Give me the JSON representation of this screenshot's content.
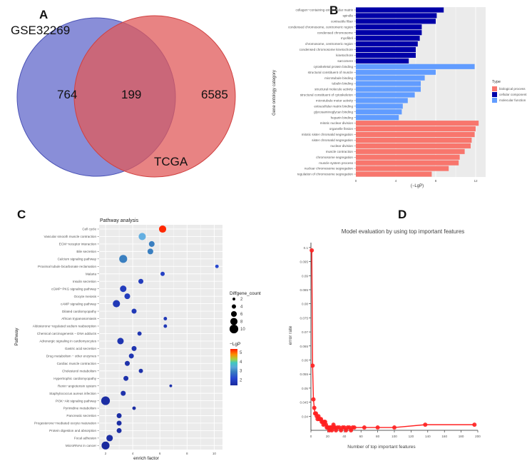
{
  "panels": {
    "a": "A",
    "b": "B",
    "c": "C",
    "d": "D"
  },
  "chart_data": [
    {
      "type": "venn",
      "sets": [
        {
          "name": "GSE32269",
          "only": "764",
          "color": "#5b63c9"
        },
        {
          "name": "TCGA",
          "only": "6585",
          "color": "#e05a5a"
        }
      ],
      "intersection": "199"
    },
    {
      "type": "bar",
      "orientation": "horizontal",
      "title": "",
      "xlabel": "(−LgP)",
      "ylabel": "Gene ontology category",
      "xlim": [
        0,
        13
      ],
      "xticks": [
        "0",
        "4",
        "8",
        "12"
      ],
      "legend": {
        "title": "Type",
        "placement": "right",
        "entries": [
          {
            "label": "biological process",
            "color": "#f8766d"
          },
          {
            "label": "cellular component",
            "color": "#0000a8"
          },
          {
            "label": "molecular function",
            "color": "#619cff"
          }
        ]
      },
      "bars": [
        {
          "label": "collagen−containing extracellular matrix",
          "type": 1,
          "value": 8.8
        },
        {
          "label": "spindle",
          "type": 1,
          "value": 8.1
        },
        {
          "label": "contractile fiber",
          "type": 1,
          "value": 8.0
        },
        {
          "label": "condensed chromosome, centromeric region",
          "type": 1,
          "value": 6.6
        },
        {
          "label": "condensed chromosome",
          "type": 1,
          "value": 6.6
        },
        {
          "label": "myofibril",
          "type": 1,
          "value": 6.4
        },
        {
          "label": "chromosome, centromeric region",
          "type": 1,
          "value": 6.2
        },
        {
          "label": "condensed chromosome kinetochore",
          "type": 1,
          "value": 6.0
        },
        {
          "label": "kinetochore",
          "type": 1,
          "value": 6.0
        },
        {
          "label": "sarcomere",
          "type": 1,
          "value": 5.3
        },
        {
          "label": "cytoskeletal protein binding",
          "type": 2,
          "value": 11.9
        },
        {
          "label": "structural constituent of muscle",
          "type": 2,
          "value": 8.0
        },
        {
          "label": "microtubule binding",
          "type": 2,
          "value": 6.9
        },
        {
          "label": "tubulin binding",
          "type": 2,
          "value": 6.5
        },
        {
          "label": "structural molecule activity",
          "type": 2,
          "value": 6.5
        },
        {
          "label": "structural constituent of cytoskeleton",
          "type": 2,
          "value": 5.9
        },
        {
          "label": "microtubule motor activity",
          "type": 2,
          "value": 5.2
        },
        {
          "label": "extracellular matrix binding",
          "type": 2,
          "value": 4.7
        },
        {
          "label": "glycosaminoglycan binding",
          "type": 2,
          "value": 4.6
        },
        {
          "label": "heparin binding",
          "type": 2,
          "value": 4.3
        },
        {
          "label": "mitotic nuclear division",
          "type": 0,
          "value": 12.3
        },
        {
          "label": "organelle fission",
          "type": 0,
          "value": 12.0
        },
        {
          "label": "mitotic sister chromatid segregation",
          "type": 0,
          "value": 11.9
        },
        {
          "label": "sister chromatid segregation",
          "type": 0,
          "value": 11.6
        },
        {
          "label": "nuclear division",
          "type": 0,
          "value": 11.5
        },
        {
          "label": "muscle contraction",
          "type": 0,
          "value": 10.9
        },
        {
          "label": "chromosome segregation",
          "type": 0,
          "value": 10.4
        },
        {
          "label": "muscle system process",
          "type": 0,
          "value": 10.3
        },
        {
          "label": "nuclear chromosome segregation",
          "type": 0,
          "value": 9.3
        },
        {
          "label": "regulation of chromosome segregation",
          "type": 0,
          "value": 7.6
        }
      ]
    },
    {
      "type": "scatter",
      "title": "Pathway analysis",
      "xlabel": "enrich factor",
      "ylabel": "Pathway",
      "xlim": [
        1.5,
        10.6
      ],
      "xticks": [
        "2",
        "4",
        "6",
        "8",
        "10"
      ],
      "size_legend": {
        "title": "Diffgene_count",
        "values": [
          "2",
          "4",
          "6",
          "8",
          "10"
        ]
      },
      "color_legend": {
        "title": "−LgP",
        "ticks": [
          "5",
          "4",
          "3",
          "2"
        ],
        "range": [
          1.4,
          5.4
        ]
      },
      "points": [
        {
          "pathway": "Cell cycle",
          "x": 6.2,
          "count": 8,
          "lgp": 5.3
        },
        {
          "pathway": "Vascular smooth muscle contraction",
          "x": 4.7,
          "count": 8,
          "lgp": 3.4
        },
        {
          "pathway": "ECM−receptor interaction",
          "x": 5.4,
          "count": 6,
          "lgp": 2.9
        },
        {
          "pathway": "Bile secretion",
          "x": 5.3,
          "count": 6,
          "lgp": 2.9
        },
        {
          "pathway": "Calcium signaling pathway",
          "x": 3.3,
          "count": 9,
          "lgp": 2.9
        },
        {
          "pathway": "Proximal tubule bicarbonate reclamation",
          "x": 10.2,
          "count": 3,
          "lgp": 2.2
        },
        {
          "pathway": "Malaria",
          "x": 6.2,
          "count": 4,
          "lgp": 2.0
        },
        {
          "pathway": "Insulin secretion",
          "x": 4.6,
          "count": 5,
          "lgp": 1.9
        },
        {
          "pathway": "cGMP−PKG signaling pathway",
          "x": 3.3,
          "count": 7,
          "lgp": 1.9
        },
        {
          "pathway": "Oocyte meiosis",
          "x": 3.6,
          "count": 6,
          "lgp": 1.9
        },
        {
          "pathway": "cAMP signaling pathway",
          "x": 2.8,
          "count": 8,
          "lgp": 1.8
        },
        {
          "pathway": "Dilated cardiomyopathy",
          "x": 4.1,
          "count": 5,
          "lgp": 1.8
        },
        {
          "pathway": "African trypanosomiasis",
          "x": 6.4,
          "count": 3,
          "lgp": 1.8
        },
        {
          "pathway": "Aldosterone−regulated sodium reabsorption",
          "x": 6.4,
          "count": 3,
          "lgp": 1.8
        },
        {
          "pathway": "Chemical carcinogenesis − DNA adducts",
          "x": 4.5,
          "count": 4,
          "lgp": 1.7
        },
        {
          "pathway": "Adrenergic signaling in cardiomyocytes",
          "x": 3.1,
          "count": 7,
          "lgp": 1.7
        },
        {
          "pathway": "Gastric acid secretion",
          "x": 4.1,
          "count": 5,
          "lgp": 1.7
        },
        {
          "pathway": "Drug metabolism − other enzymes",
          "x": 3.9,
          "count": 5,
          "lgp": 1.7
        },
        {
          "pathway": "Cardiac muscle contraction",
          "x": 3.6,
          "count": 5,
          "lgp": 1.6
        },
        {
          "pathway": "Cholesterol metabolism",
          "x": 4.6,
          "count": 4,
          "lgp": 1.6
        },
        {
          "pathway": "Hypertrophic cardiomyopathy",
          "x": 3.5,
          "count": 5,
          "lgp": 1.6
        },
        {
          "pathway": "Renin−angiotensin system",
          "x": 6.8,
          "count": 2,
          "lgp": 1.6
        },
        {
          "pathway": "Staphylococcus aureus infection",
          "x": 3.3,
          "count": 5,
          "lgp": 1.6
        },
        {
          "pathway": "PI3K−Akt signaling pathway",
          "x": 2.0,
          "count": 10,
          "lgp": 1.5
        },
        {
          "pathway": "Pyrimidine metabolism",
          "x": 4.1,
          "count": 3,
          "lgp": 1.5
        },
        {
          "pathway": "Pancreatic secretion",
          "x": 3.0,
          "count": 5,
          "lgp": 1.5
        },
        {
          "pathway": "Progesterone−mediated oocyte maturation",
          "x": 3.0,
          "count": 5,
          "lgp": 1.5
        },
        {
          "pathway": "Protein digestion and absorption",
          "x": 3.0,
          "count": 5,
          "lgp": 1.5
        },
        {
          "pathway": "Focal adhesion",
          "x": 2.3,
          "count": 7,
          "lgp": 1.5
        },
        {
          "pathway": "MicroRNAs in cancer",
          "x": 2.0,
          "count": 9,
          "lgp": 1.4
        }
      ]
    },
    {
      "type": "line",
      "title": "Model evaluation by using top important features",
      "xlabel": "Number of top important features",
      "ylabel": "error rate",
      "xlim": [
        0,
        200
      ],
      "ylim": [
        0.035,
        0.1
      ],
      "xticks": [
        "0",
        "20",
        "40",
        "60",
        "80",
        "100",
        "120",
        "140",
        "160",
        "180",
        "200"
      ],
      "yticks": [
        "0.04",
        "0.045",
        "0.05",
        "0.055",
        "0.06",
        "0.065",
        "0.07",
        "0.075",
        "0.08",
        "0.085",
        "0.09",
        "0.095",
        "0.1"
      ],
      "color": "#ff2020",
      "x": [
        1,
        2,
        3,
        4,
        5,
        6,
        7,
        8,
        9,
        10,
        11,
        12,
        13,
        14,
        15,
        16,
        17,
        18,
        19,
        20,
        21,
        22,
        23,
        24,
        25,
        26,
        27,
        28,
        29,
        30,
        32,
        34,
        36,
        38,
        40,
        42,
        44,
        46,
        48,
        50,
        52,
        64,
        80,
        100,
        137,
        196
      ],
      "y": [
        0.099,
        0.058,
        0.046,
        0.043,
        0.041,
        0.041,
        0.04,
        0.039,
        0.04,
        0.039,
        0.039,
        0.039,
        0.038,
        0.038,
        0.037,
        0.038,
        0.038,
        0.037,
        0.036,
        0.036,
        0.036,
        0.035,
        0.036,
        0.036,
        0.035,
        0.036,
        0.037,
        0.036,
        0.036,
        0.035,
        0.036,
        0.036,
        0.035,
        0.036,
        0.036,
        0.035,
        0.036,
        0.036,
        0.035,
        0.036,
        0.036,
        0.036,
        0.036,
        0.036,
        0.037,
        0.037
      ]
    }
  ]
}
